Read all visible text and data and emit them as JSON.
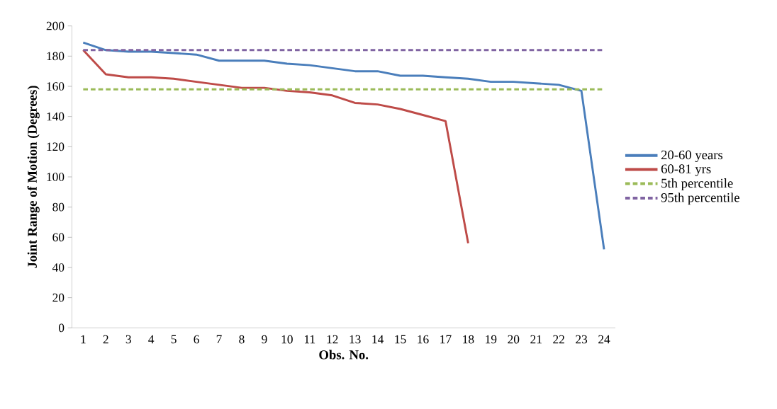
{
  "chart_data": {
    "type": "line",
    "xlabel": "Obs. No.",
    "ylabel": "Joint Range of Motion (Degrees)",
    "categories": [
      "1",
      "2",
      "3",
      "4",
      "5",
      "6",
      "7",
      "8",
      "9",
      "10",
      "11",
      "12",
      "13",
      "14",
      "15",
      "16",
      "17",
      "18",
      "19",
      "20",
      "21",
      "22",
      "23",
      "24"
    ],
    "ylim": [
      0,
      200
    ],
    "yticks": [
      0,
      20,
      40,
      60,
      80,
      100,
      120,
      140,
      160,
      180,
      200
    ],
    "grid": false,
    "legend": "right",
    "marker": "none",
    "series": [
      {
        "name": "20-60 years",
        "color": "#4a7ebb",
        "line_style": "solid",
        "values": [
          189,
          184,
          183,
          183,
          182,
          181,
          177,
          177,
          177,
          175,
          174,
          172,
          170,
          170,
          167,
          167,
          166,
          165,
          163,
          163,
          162,
          161,
          157,
          52
        ]
      },
      {
        "name": "60-81 yrs",
        "color": "#be4b48",
        "line_style": "solid",
        "values": [
          184,
          168,
          166,
          166,
          165,
          163,
          161,
          159,
          159,
          157,
          156,
          154,
          149,
          148,
          145,
          141,
          137,
          56,
          null,
          null,
          null,
          null,
          null,
          null
        ]
      },
      {
        "name": "5th percentile",
        "color": "#9bbb59",
        "line_style": "dashed",
        "values": [
          158,
          158,
          158,
          158,
          158,
          158,
          158,
          158,
          158,
          158,
          158,
          158,
          158,
          158,
          158,
          158,
          158,
          158,
          158,
          158,
          158,
          158,
          158,
          158
        ]
      },
      {
        "name": "95th percentile",
        "color": "#8064a2",
        "line_style": "dashed",
        "values": [
          184,
          184,
          184,
          184,
          184,
          184,
          184,
          184,
          184,
          184,
          184,
          184,
          184,
          184,
          184,
          184,
          184,
          184,
          184,
          184,
          184,
          184,
          184,
          184
        ]
      }
    ]
  }
}
